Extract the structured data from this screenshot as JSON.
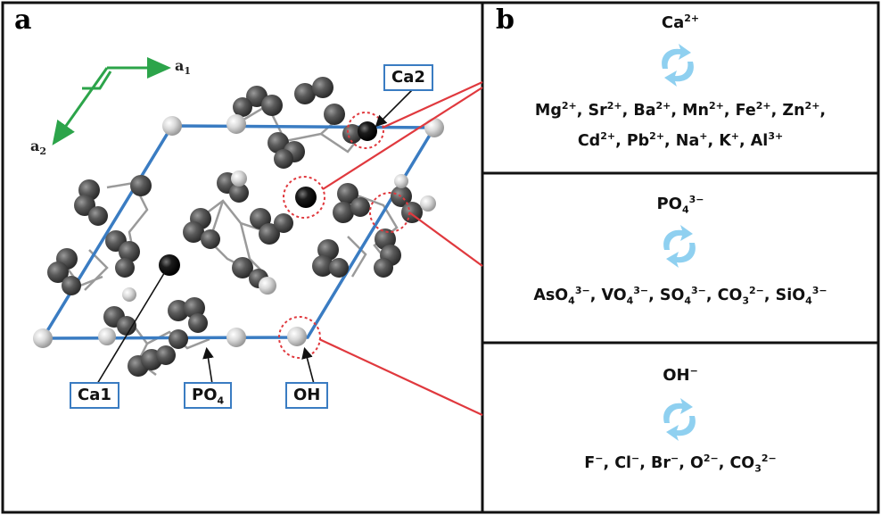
{
  "panel_a": {
    "letter": "a",
    "axis_a1": "a",
    "axis_a1_sub": "1",
    "axis_a2": "a",
    "axis_a2_sub": "2",
    "labels": {
      "ca2": "Ca2",
      "ca1": "Ca1",
      "po4_main": "PO",
      "po4_sub": "4",
      "oh": "OH"
    },
    "colors": {
      "unit_cell": "#3a7cc2",
      "axes": "#2ca44a",
      "callout": "#e0393e",
      "atom_dark": "#4a4a4a",
      "atom_light": "#d0d0d0"
    }
  },
  "panel_b": {
    "letter": "b",
    "icon": "exchange-cycle-icon",
    "sections": [
      {
        "ion": "Ca",
        "ion_sup": "2+",
        "substitutes": [
          [
            {
              "t": "Mg",
              "s": "2+"
            },
            {
              "t": "Sr",
              "s": "2+"
            },
            {
              "t": "Ba",
              "s": "2+"
            },
            {
              "t": "Mn",
              "s": "2+"
            },
            {
              "t": "Fe",
              "s": "2+"
            },
            {
              "t": "Zn",
              "s": "2+"
            }
          ],
          [
            {
              "t": "Cd",
              "s": "2+"
            },
            {
              "t": "Pb",
              "s": "2+"
            },
            {
              "t": "Na",
              "s": "+"
            },
            {
              "t": "K",
              "s": "+"
            },
            {
              "t": "Al",
              "s": "3+"
            }
          ]
        ]
      },
      {
        "ion": "PO",
        "ion_sub": "4",
        "ion_sup": "3−",
        "substitutes": [
          [
            {
              "t": "AsO",
              "b": "4",
              "s": "3−"
            },
            {
              "t": "VO",
              "b": "4",
              "s": "3−"
            },
            {
              "t": "SO",
              "b": "4",
              "s": "3−"
            },
            {
              "t": "CO",
              "b": "3",
              "s": "2−"
            },
            {
              "t": "SiO",
              "b": "4",
              "s": "3−"
            }
          ]
        ]
      },
      {
        "ion": "OH",
        "ion_sup": "−",
        "substitutes": [
          [
            {
              "t": "F",
              "s": "−"
            },
            {
              "t": "Cl",
              "s": "−"
            },
            {
              "t": "Br",
              "s": "−"
            },
            {
              "t": "O",
              "s": "2−"
            },
            {
              "t": "CO",
              "b": "3",
              "s": "2−"
            }
          ]
        ]
      }
    ]
  }
}
